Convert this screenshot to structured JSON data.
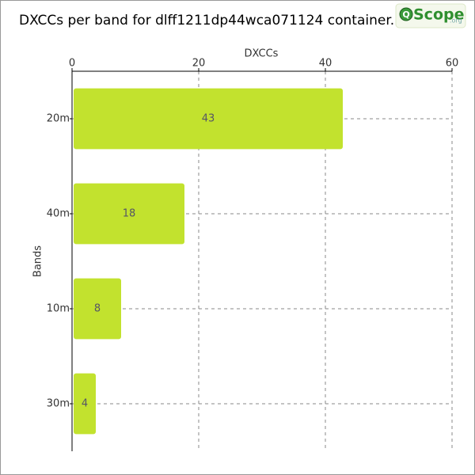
{
  "chart_data": {
    "type": "hbar",
    "title": "DXCCs per band for dlff1211dp44wca071124 container.",
    "logo": {
      "mark": "Q",
      "text": "Scope",
      "suffix": ".org"
    },
    "xlabel": "DXCCs",
    "ylabel": "Bands",
    "categories": [
      "20m",
      "40m",
      "10m",
      "30m"
    ],
    "values": [
      43,
      18,
      8,
      4
    ],
    "color": "#c2e22e",
    "xlim": [
      0,
      60
    ],
    "xticks": [
      0,
      20,
      40,
      60
    ],
    "grid": true
  }
}
